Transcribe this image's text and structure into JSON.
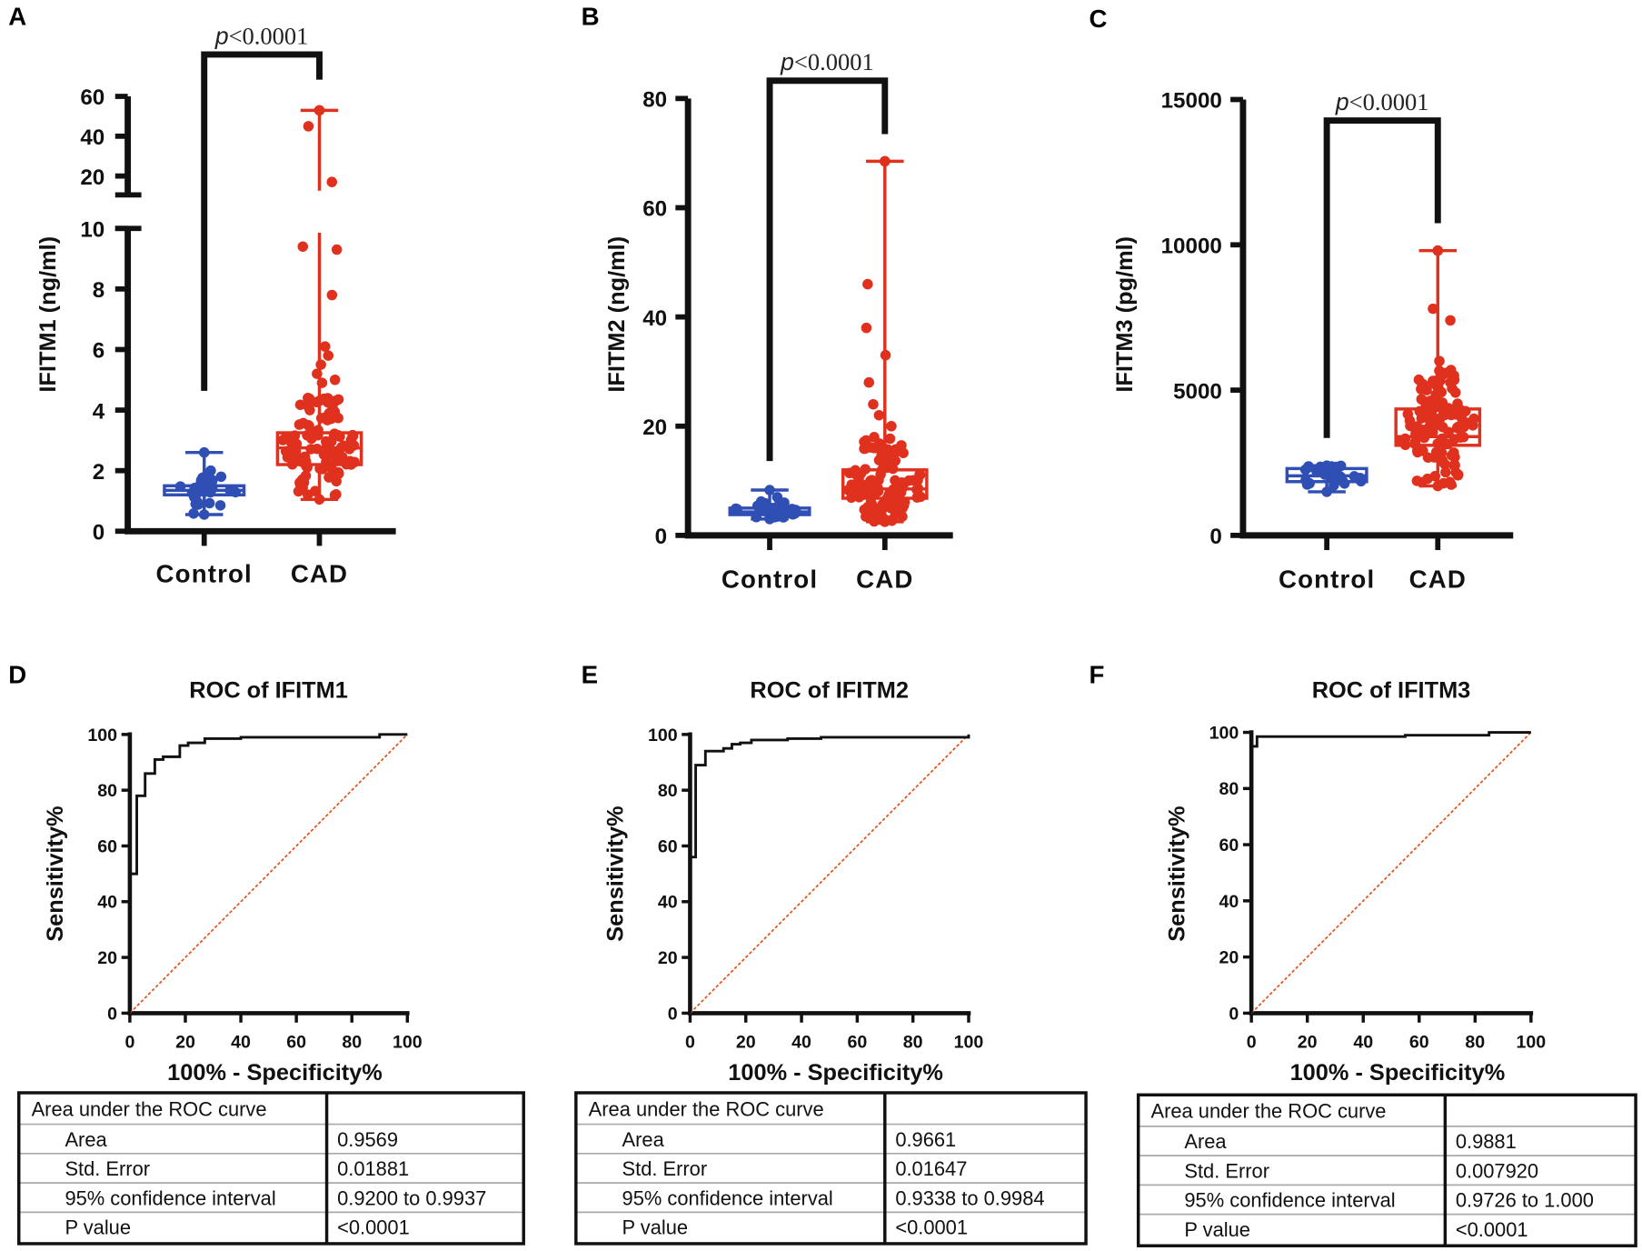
{
  "colors": {
    "control": "#2f4fb5",
    "cad": "#e0301e",
    "axis": "#111111",
    "diagonal": "#e0541e"
  },
  "chart_data": [
    {
      "panel": "A",
      "type": "box-scatter",
      "ylabel": "IFITM1 (ng/ml)",
      "categories": [
        "Control",
        "CAD"
      ],
      "yticks_lower": [
        0,
        2,
        4,
        6,
        8,
        10
      ],
      "yticks_upper": [
        20,
        40,
        60
      ],
      "ylim": [
        0,
        60
      ],
      "axis_break": [
        10,
        12
      ],
      "significance": "<0.0001",
      "p_symbol": "p",
      "series": [
        {
          "name": "Control",
          "min": 0.55,
          "q1": 1.2,
          "median": 1.35,
          "q3": 1.5,
          "max": 2.6,
          "high_points": [
            2.0,
            1.8,
            1.7
          ]
        },
        {
          "name": "CAD",
          "min": 1.05,
          "q1": 2.2,
          "median": 2.75,
          "q3": 3.25,
          "max": 53,
          "high_points": [
            53,
            45,
            17,
            9.4,
            9.3,
            7.8,
            6.1,
            5.8,
            5.5,
            5.2,
            5.0,
            4.9,
            4.3,
            4.0,
            3.8
          ]
        }
      ]
    },
    {
      "panel": "B",
      "type": "box-scatter",
      "ylabel": "IFITM2 (ng/ml)",
      "categories": [
        "Control",
        "CAD"
      ],
      "yticks": [
        0,
        20,
        40,
        60,
        80
      ],
      "ylim": [
        0,
        80
      ],
      "significance": "<0.0001",
      "p_symbol": "p",
      "series": [
        {
          "name": "Control",
          "min": 3.0,
          "q1": 3.8,
          "median": 4.3,
          "q3": 5.0,
          "max": 8.3,
          "high_points": [
            7.0,
            6.2
          ]
        },
        {
          "name": "CAD",
          "min": 2.5,
          "q1": 6.8,
          "median": 8.5,
          "q3": 12,
          "max": 68.5,
          "high_points": [
            68.5,
            46,
            38,
            33,
            28,
            24,
            22,
            20,
            18,
            16,
            15
          ]
        }
      ]
    },
    {
      "panel": "C",
      "type": "box-scatter",
      "ylabel": "IFITM3 (pg/ml)",
      "categories": [
        "Control",
        "CAD"
      ],
      "yticks": [
        0,
        5000,
        10000,
        15000
      ],
      "ylim": [
        0,
        15000
      ],
      "significance": "<0.0001",
      "p_symbol": "p",
      "series": [
        {
          "name": "Control",
          "min": 1500,
          "q1": 1850,
          "median": 2050,
          "q3": 2300,
          "max": 2400,
          "high_points": []
        },
        {
          "name": "CAD",
          "min": 1700,
          "q1": 3100,
          "median": 3400,
          "q3": 4350,
          "max": 9800,
          "high_points": [
            9800,
            7800,
            7400,
            6000,
            5500,
            5200,
            5000
          ]
        }
      ]
    },
    {
      "panel": "D",
      "type": "line",
      "title": "ROC of IFITM1",
      "xlabel": "100% - Specificity%",
      "ylabel": "Sensitivity%",
      "xticks": [
        0,
        20,
        40,
        60,
        80,
        100
      ],
      "yticks": [
        0,
        20,
        40,
        60,
        80,
        100
      ],
      "xlim": [
        0,
        100
      ],
      "ylim": [
        0,
        100
      ],
      "roc": [
        [
          0,
          0
        ],
        [
          0,
          50
        ],
        [
          2.5,
          50
        ],
        [
          2.5,
          78
        ],
        [
          5.5,
          78
        ],
        [
          5.5,
          86
        ],
        [
          9,
          86
        ],
        [
          9,
          91
        ],
        [
          12,
          91
        ],
        [
          12,
          92
        ],
        [
          18,
          92
        ],
        [
          18,
          96
        ],
        [
          21,
          96
        ],
        [
          21,
          97
        ],
        [
          27,
          97
        ],
        [
          27,
          98.5
        ],
        [
          40,
          98.5
        ],
        [
          40,
          99
        ],
        [
          90,
          99
        ],
        [
          90,
          100
        ],
        [
          100,
          100
        ]
      ],
      "table": {
        "header": "Area under the ROC curve",
        "rows": [
          {
            "label": "Area",
            "value": "0.9569"
          },
          {
            "label": "Std. Error",
            "value": "0.01881"
          },
          {
            "label": "95% confidence interval",
            "value": "0.9200 to 0.9937"
          },
          {
            "label": "P value",
            "value": "<0.0001"
          }
        ]
      }
    },
    {
      "panel": "E",
      "type": "line",
      "title": "ROC of IFITM2",
      "xlabel": "100% - Specificity%",
      "ylabel": "Sensitivity%",
      "xticks": [
        0,
        20,
        40,
        60,
        80,
        100
      ],
      "yticks": [
        0,
        20,
        40,
        60,
        80,
        100
      ],
      "xlim": [
        0,
        100
      ],
      "ylim": [
        0,
        100
      ],
      "roc": [
        [
          0,
          0
        ],
        [
          0,
          56
        ],
        [
          2,
          56
        ],
        [
          2,
          89
        ],
        [
          5.5,
          89
        ],
        [
          5.5,
          94
        ],
        [
          12,
          94
        ],
        [
          12,
          95
        ],
        [
          15,
          95
        ],
        [
          15,
          96.5
        ],
        [
          18,
          96.5
        ],
        [
          18,
          97
        ],
        [
          22,
          97
        ],
        [
          22,
          98
        ],
        [
          35,
          98
        ],
        [
          35,
          98.5
        ],
        [
          47,
          98.5
        ],
        [
          47,
          99
        ],
        [
          100,
          99
        ],
        [
          100,
          100
        ]
      ],
      "table": {
        "header": "Area under the ROC curve",
        "rows": [
          {
            "label": "Area",
            "value": "0.9661"
          },
          {
            "label": "Std. Error",
            "value": "0.01647"
          },
          {
            "label": "95% confidence interval",
            "value": "0.9338 to 0.9984"
          },
          {
            "label": "P value",
            "value": "<0.0001"
          }
        ]
      }
    },
    {
      "panel": "F",
      "type": "line",
      "title": "ROC of IFITM3",
      "xlabel": "100% - Specificity%",
      "ylabel": "Sensitivity%",
      "xticks": [
        0,
        20,
        40,
        60,
        80,
        100
      ],
      "yticks": [
        0,
        20,
        40,
        60,
        80,
        100
      ],
      "xlim": [
        0,
        100
      ],
      "ylim": [
        0,
        100
      ],
      "roc": [
        [
          0,
          0
        ],
        [
          0,
          95
        ],
        [
          2,
          95
        ],
        [
          2,
          98.5
        ],
        [
          55,
          98.5
        ],
        [
          55,
          99
        ],
        [
          85,
          99
        ],
        [
          85,
          100
        ],
        [
          100,
          100
        ]
      ],
      "table": {
        "header": "Area under the ROC curve",
        "rows": [
          {
            "label": "Area",
            "value": "0.9881"
          },
          {
            "label": "Std. Error",
            "value": "0.007920"
          },
          {
            "label": "95% confidence interval",
            "value": "0.9726 to 1.000"
          },
          {
            "label": "P value",
            "value": "<0.0001"
          }
        ]
      }
    }
  ]
}
